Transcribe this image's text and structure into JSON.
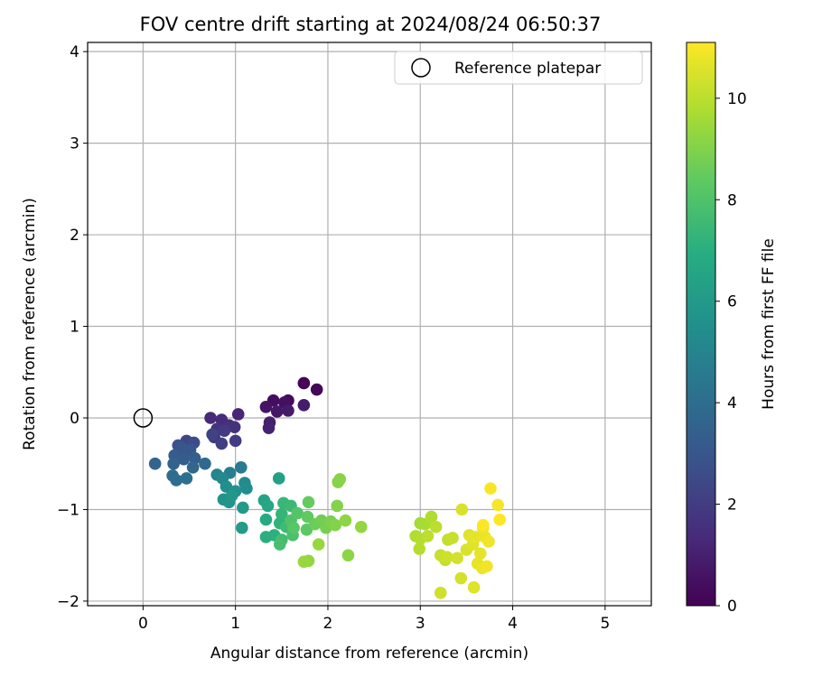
{
  "chart_data": {
    "type": "scatter",
    "title": "FOV centre drift starting at 2024/08/24 06:50:37",
    "xlabel": "Angular distance from reference (arcmin)",
    "ylabel": "Rotation from reference (arcmin)",
    "xlim": [
      -0.6,
      5.5
    ],
    "ylim": [
      -2.05,
      4.1
    ],
    "xticks": [
      0,
      1,
      2,
      3,
      4,
      5
    ],
    "yticks": [
      -2,
      -1,
      0,
      1,
      2,
      3,
      4
    ],
    "grid": true,
    "legend": {
      "placement": "top-right",
      "entries": [
        "Reference platepar"
      ]
    },
    "reference_point": {
      "x": 0,
      "y": 0,
      "label": "Reference platepar"
    },
    "colorbar": {
      "label": "Hours from first FF file",
      "colormap": "viridis",
      "range": [
        0,
        11.1
      ],
      "ticks": [
        0,
        2,
        4,
        6,
        8,
        10
      ]
    },
    "points": [
      {
        "x": 1.74,
        "y": 0.38,
        "c": 0.1
      },
      {
        "x": 1.88,
        "y": 0.31,
        "c": 0.2
      },
      {
        "x": 1.57,
        "y": 0.19,
        "c": 0.3
      },
      {
        "x": 1.41,
        "y": 0.19,
        "c": 0.4
      },
      {
        "x": 1.53,
        "y": 0.17,
        "c": 0.5
      },
      {
        "x": 1.33,
        "y": 0.12,
        "c": 0.6
      },
      {
        "x": 1.45,
        "y": 0.07,
        "c": 0.7
      },
      {
        "x": 1.57,
        "y": 0.08,
        "c": 0.8
      },
      {
        "x": 1.74,
        "y": 0.14,
        "c": 0.9
      },
      {
        "x": 1.37,
        "y": -0.05,
        "c": 1.0
      },
      {
        "x": 1.36,
        "y": -0.11,
        "c": 1.1
      },
      {
        "x": 1.03,
        "y": 0.04,
        "c": 1.2
      },
      {
        "x": 0.73,
        "y": 0.0,
        "c": 1.3
      },
      {
        "x": 0.85,
        "y": -0.02,
        "c": 1.4
      },
      {
        "x": 0.93,
        "y": -0.08,
        "c": 1.5
      },
      {
        "x": 0.99,
        "y": -0.1,
        "c": 1.6
      },
      {
        "x": 0.8,
        "y": -0.12,
        "c": 1.7
      },
      {
        "x": 0.77,
        "y": -0.21,
        "c": 1.8
      },
      {
        "x": 0.88,
        "y": -0.14,
        "c": 1.9
      },
      {
        "x": 1.0,
        "y": -0.25,
        "c": 2.0
      },
      {
        "x": 0.85,
        "y": -0.28,
        "c": 2.1
      },
      {
        "x": 0.75,
        "y": -0.18,
        "c": 2.2
      },
      {
        "x": 0.47,
        "y": -0.25,
        "c": 2.4
      },
      {
        "x": 0.55,
        "y": -0.27,
        "c": 2.6
      },
      {
        "x": 0.38,
        "y": -0.3,
        "c": 2.8
      },
      {
        "x": 0.42,
        "y": -0.33,
        "c": 3.0
      },
      {
        "x": 0.51,
        "y": -0.35,
        "c": 3.1
      },
      {
        "x": 0.34,
        "y": -0.41,
        "c": 3.2
      },
      {
        "x": 0.44,
        "y": -0.45,
        "c": 3.3
      },
      {
        "x": 0.56,
        "y": -0.44,
        "c": 3.4
      },
      {
        "x": 0.33,
        "y": -0.5,
        "c": 3.5
      },
      {
        "x": 0.13,
        "y": -0.5,
        "c": 3.6
      },
      {
        "x": 0.54,
        "y": -0.54,
        "c": 3.7
      },
      {
        "x": 0.67,
        "y": -0.5,
        "c": 3.8
      },
      {
        "x": 0.32,
        "y": -0.63,
        "c": 3.9
      },
      {
        "x": 0.36,
        "y": -0.68,
        "c": 4.0
      },
      {
        "x": 0.47,
        "y": -0.66,
        "c": 4.1
      },
      {
        "x": 1.06,
        "y": -0.54,
        "c": 4.6
      },
      {
        "x": 0.94,
        "y": -0.6,
        "c": 4.8
      },
      {
        "x": 0.8,
        "y": -0.62,
        "c": 5.0
      },
      {
        "x": 0.86,
        "y": -0.66,
        "c": 5.2
      },
      {
        "x": 1.1,
        "y": -0.71,
        "c": 5.3
      },
      {
        "x": 1.12,
        "y": -0.77,
        "c": 5.4
      },
      {
        "x": 0.9,
        "y": -0.75,
        "c": 5.5
      },
      {
        "x": 1.0,
        "y": -0.8,
        "c": 5.6
      },
      {
        "x": 0.87,
        "y": -0.89,
        "c": 5.7
      },
      {
        "x": 0.93,
        "y": -0.92,
        "c": 5.8
      },
      {
        "x": 0.96,
        "y": -0.85,
        "c": 5.9
      },
      {
        "x": 1.08,
        "y": -0.98,
        "c": 6.0
      },
      {
        "x": 1.07,
        "y": -1.2,
        "c": 6.1
      },
      {
        "x": 1.47,
        "y": -0.66,
        "c": 6.3
      },
      {
        "x": 1.31,
        "y": -0.9,
        "c": 6.5
      },
      {
        "x": 1.35,
        "y": -0.96,
        "c": 6.6
      },
      {
        "x": 1.33,
        "y": -1.11,
        "c": 6.8
      },
      {
        "x": 1.33,
        "y": -1.3,
        "c": 7.0
      },
      {
        "x": 1.42,
        "y": -1.28,
        "c": 7.1
      },
      {
        "x": 1.48,
        "y": -1.15,
        "c": 7.2
      },
      {
        "x": 1.5,
        "y": -1.05,
        "c": 7.3
      },
      {
        "x": 1.52,
        "y": -0.93,
        "c": 7.4
      },
      {
        "x": 1.6,
        "y": -0.96,
        "c": 7.5
      },
      {
        "x": 1.55,
        "y": -1.19,
        "c": 7.6
      },
      {
        "x": 1.5,
        "y": -1.33,
        "c": 7.7
      },
      {
        "x": 1.48,
        "y": -1.38,
        "c": 7.8
      },
      {
        "x": 1.62,
        "y": -1.28,
        "c": 7.9
      },
      {
        "x": 1.6,
        "y": -1.12,
        "c": 8.0
      },
      {
        "x": 1.67,
        "y": -1.04,
        "c": 8.1
      },
      {
        "x": 1.63,
        "y": -1.2,
        "c": 8.2
      },
      {
        "x": 1.77,
        "y": -1.22,
        "c": 8.3
      },
      {
        "x": 1.78,
        "y": -1.08,
        "c": 8.4
      },
      {
        "x": 1.79,
        "y": -0.92,
        "c": 8.5
      },
      {
        "x": 1.86,
        "y": -1.16,
        "c": 8.6
      },
      {
        "x": 1.93,
        "y": -1.12,
        "c": 8.7
      },
      {
        "x": 1.98,
        "y": -1.2,
        "c": 8.8
      },
      {
        "x": 2.03,
        "y": -1.13,
        "c": 8.9
      },
      {
        "x": 2.08,
        "y": -1.17,
        "c": 9.0
      },
      {
        "x": 2.1,
        "y": -0.96,
        "c": 9.0
      },
      {
        "x": 2.11,
        "y": -0.7,
        "c": 9.1
      },
      {
        "x": 2.13,
        "y": -0.67,
        "c": 9.1
      },
      {
        "x": 2.19,
        "y": -1.12,
        "c": 9.2
      },
      {
        "x": 2.22,
        "y": -1.5,
        "c": 9.2
      },
      {
        "x": 2.36,
        "y": -1.19,
        "c": 9.3
      },
      {
        "x": 1.79,
        "y": -1.56,
        "c": 9.3
      },
      {
        "x": 1.74,
        "y": -1.57,
        "c": 9.4
      },
      {
        "x": 1.9,
        "y": -1.38,
        "c": 9.4
      },
      {
        "x": 3.0,
        "y": -1.15,
        "c": 9.6
      },
      {
        "x": 3.05,
        "y": -1.16,
        "c": 9.7
      },
      {
        "x": 3.12,
        "y": -1.08,
        "c": 9.8
      },
      {
        "x": 2.95,
        "y": -1.29,
        "c": 9.8
      },
      {
        "x": 3.0,
        "y": -1.32,
        "c": 9.9
      },
      {
        "x": 2.99,
        "y": -1.43,
        "c": 9.9
      },
      {
        "x": 3.08,
        "y": -1.29,
        "c": 10.0
      },
      {
        "x": 3.17,
        "y": -1.19,
        "c": 10.0
      },
      {
        "x": 3.27,
        "y": -1.55,
        "c": 10.1
      },
      {
        "x": 3.3,
        "y": -1.33,
        "c": 10.1
      },
      {
        "x": 3.35,
        "y": -1.31,
        "c": 10.2
      },
      {
        "x": 3.22,
        "y": -1.5,
        "c": 10.2
      },
      {
        "x": 3.29,
        "y": -1.52,
        "c": 10.3
      },
      {
        "x": 3.22,
        "y": -1.91,
        "c": 10.3
      },
      {
        "x": 3.4,
        "y": -1.53,
        "c": 10.4
      },
      {
        "x": 3.44,
        "y": -1.75,
        "c": 10.4
      },
      {
        "x": 3.45,
        "y": -1.0,
        "c": 10.5
      },
      {
        "x": 3.5,
        "y": -1.44,
        "c": 10.5
      },
      {
        "x": 3.53,
        "y": -1.28,
        "c": 10.6
      },
      {
        "x": 3.57,
        "y": -1.38,
        "c": 10.6
      },
      {
        "x": 3.58,
        "y": -1.85,
        "c": 10.6
      },
      {
        "x": 3.6,
        "y": -1.3,
        "c": 10.7
      },
      {
        "x": 3.62,
        "y": -1.59,
        "c": 10.7
      },
      {
        "x": 3.65,
        "y": -1.48,
        "c": 10.7
      },
      {
        "x": 3.67,
        "y": -1.64,
        "c": 10.8
      },
      {
        "x": 3.68,
        "y": -1.2,
        "c": 10.8
      },
      {
        "x": 3.7,
        "y": -1.3,
        "c": 10.8
      },
      {
        "x": 3.72,
        "y": -1.62,
        "c": 10.9
      },
      {
        "x": 3.74,
        "y": -1.35,
        "c": 10.9
      },
      {
        "x": 3.76,
        "y": -0.77,
        "c": 11.0
      },
      {
        "x": 3.84,
        "y": -0.95,
        "c": 11.0
      },
      {
        "x": 3.86,
        "y": -1.11,
        "c": 11.1
      },
      {
        "x": 3.68,
        "y": -1.17,
        "c": 11.1
      }
    ]
  }
}
